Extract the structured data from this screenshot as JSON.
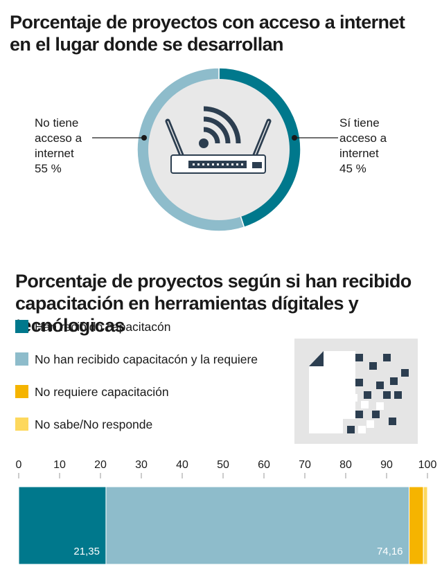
{
  "donut": {
    "title": "Porcentaje de proyectos con acceso a internet en el lugar donde se desarrollan",
    "left_label": [
      "No tiene",
      "acceso a",
      "internet",
      "55 %"
    ],
    "right_label": [
      "Sí tiene",
      "acceso a",
      "internet",
      "45 %"
    ],
    "icon": "wifi-router-icon"
  },
  "bar_section": {
    "title": "Porcentaje de proyectos según si han recibido capacitación en herramientas dígitales y tecnólogicas",
    "icon": "digital-document-icon"
  },
  "legend": [
    {
      "label": "Han recibido capacitacón",
      "color": "#00788c"
    },
    {
      "label": "No han recibido capacitacón y la requiere",
      "color": "#8ebccb"
    },
    {
      "label": "No requiere capacitación",
      "color": "#f5b400"
    },
    {
      "label": "No sabe/No responde",
      "color": "#fdd85d"
    }
  ],
  "chart_data": [
    {
      "type": "pie",
      "categories": [
        "No tiene acceso a internet",
        "Sí tiene acceso a internet"
      ],
      "values": [
        55,
        45
      ],
      "colors": [
        "#8ebccb",
        "#00788c"
      ],
      "title": "Porcentaje de proyectos con acceso a internet en el lugar donde se desarrollan"
    },
    {
      "type": "bar",
      "orientation": "horizontal-stacked",
      "title": "Porcentaje de proyectos según si han recibido capacitación en herramientas dígitales y tecnólogicas",
      "xlim": [
        0,
        100
      ],
      "ticks": [
        "0",
        "10",
        "20",
        "30",
        "40",
        "50",
        "60",
        "70",
        "80",
        "90",
        "100"
      ],
      "series": [
        {
          "name": "Han recibido capacitacón",
          "value": 21.35,
          "label": "21,35",
          "color": "#00788c"
        },
        {
          "name": "No han recibido capacitacón y la requiere",
          "value": 74.16,
          "label": "74,16",
          "color": "#8ebccb"
        },
        {
          "name": "No requiere capacitación",
          "value": 3.5,
          "color": "#f5b400"
        },
        {
          "name": "No sabe/No responde",
          "value": 0.99,
          "color": "#fdd85d"
        }
      ]
    }
  ]
}
